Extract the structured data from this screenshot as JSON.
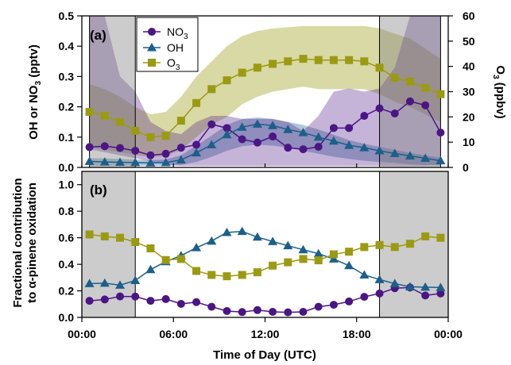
{
  "chart_data": [
    {
      "type": "line",
      "panel_label": "(a)",
      "xlabel": "",
      "ylabel": "OH or NO",
      "ylabel_sub": "3",
      "ylabel_tail": " (pptv)",
      "y2label": "O",
      "y2label_sub": "3",
      "y2label_tail": " (ppbv)",
      "xlim": [
        0,
        24
      ],
      "ylim": [
        0,
        0.5
      ],
      "y2lim": [
        0,
        60
      ],
      "yticks": [
        "0.0",
        "0.1",
        "0.2",
        "0.3",
        "0.4",
        "0.5"
      ],
      "y2ticks": [
        "0",
        "10",
        "20",
        "30",
        "40",
        "50",
        "60"
      ],
      "night_shading": [
        [
          0.5,
          3.5
        ],
        [
          19.5,
          23.5
        ]
      ],
      "x": [
        0.5,
        1.5,
        2.5,
        3.5,
        4.5,
        5.5,
        6.5,
        7.5,
        8.5,
        9.5,
        10.5,
        11.5,
        12.5,
        13.5,
        14.5,
        15.5,
        16.5,
        17.5,
        18.5,
        19.5,
        20.5,
        21.5,
        22.5,
        23.5
      ],
      "series": [
        {
          "name": "NO",
          "name_sub": "3",
          "axis": "left",
          "color": "#4b1585",
          "marker": "circle",
          "values": [
            0.067,
            0.07,
            0.064,
            0.055,
            0.04,
            0.045,
            0.065,
            0.075,
            0.142,
            0.13,
            0.093,
            0.082,
            0.102,
            0.065,
            0.06,
            0.068,
            0.13,
            0.13,
            0.17,
            0.195,
            0.178,
            0.218,
            0.205,
            0.115
          ],
          "band_low": [
            0.06,
            0.05,
            0.04,
            0.03,
            0.02,
            0.01,
            0.005,
            0.005,
            0.005,
            0.005,
            0.005,
            0.005,
            0.005,
            0.005,
            0.005,
            0.005,
            0.005,
            0.005,
            0.005,
            0.005,
            0.005,
            0.005,
            0.005,
            0.01
          ],
          "band_high": [
            0.5,
            0.5,
            0.3,
            0.25,
            0.15,
            0.12,
            0.11,
            0.15,
            0.17,
            0.17,
            0.16,
            0.16,
            0.16,
            0.15,
            0.12,
            0.17,
            0.25,
            0.26,
            0.25,
            0.26,
            0.33,
            0.5,
            0.5,
            0.5
          ]
        },
        {
          "name": "OH",
          "name_sub": "",
          "axis": "left",
          "color": "#1c5f8a",
          "marker": "triangle",
          "values": [
            0.02,
            0.018,
            0.017,
            0.016,
            0.015,
            0.016,
            0.025,
            0.048,
            0.075,
            0.108,
            0.133,
            0.143,
            0.138,
            0.125,
            0.115,
            0.1,
            0.087,
            0.073,
            0.065,
            0.055,
            0.046,
            0.038,
            0.03,
            0.022
          ],
          "band_low": [
            0.005,
            0.005,
            0.005,
            0.005,
            0.005,
            0.005,
            0.008,
            0.018,
            0.035,
            0.055,
            0.07,
            0.075,
            0.072,
            0.065,
            0.055,
            0.045,
            0.035,
            0.028,
            0.022,
            0.018,
            0.015,
            0.01,
            0.008,
            0.005
          ],
          "band_high": [
            0.03,
            0.03,
            0.028,
            0.026,
            0.024,
            0.026,
            0.04,
            0.072,
            0.105,
            0.14,
            0.16,
            0.165,
            0.16,
            0.15,
            0.14,
            0.125,
            0.108,
            0.09,
            0.078,
            0.068,
            0.058,
            0.048,
            0.04,
            0.032
          ]
        },
        {
          "name": "O",
          "name_sub": "3",
          "axis": "right",
          "color": "#9b9a13",
          "marker": "square",
          "values": [
            22,
            20.5,
            18,
            14.5,
            12,
            12.5,
            18.5,
            25.5,
            31,
            34.5,
            37.5,
            39.5,
            41,
            42,
            43,
            42.5,
            42.5,
            42.5,
            42,
            39.5,
            35.5,
            34,
            31.5,
            29
          ],
          "band_low": [
            8,
            7,
            6,
            5,
            4,
            4.5,
            7,
            12,
            17,
            20,
            25,
            28,
            30,
            31,
            32,
            31,
            31,
            31,
            31,
            29,
            26,
            24,
            21,
            18
          ],
          "band_high": [
            33,
            31,
            28,
            24,
            21,
            22,
            28,
            36,
            42,
            48,
            52,
            54,
            55,
            55.5,
            56,
            56,
            56,
            56,
            56,
            55,
            53,
            51,
            47,
            43
          ]
        }
      ]
    },
    {
      "type": "line",
      "panel_label": "(b)",
      "xlabel": "Time of Day (UTC)",
      "ylabel": "Fractional contribution",
      "ylabel2": "to α-pinene oxidation",
      "xlim": [
        0,
        24
      ],
      "ylim": [
        0,
        1.1
      ],
      "yticks": [
        "0.0",
        "0.2",
        "0.4",
        "0.6",
        "0.8",
        "1.0"
      ],
      "xtick_labels": [
        "00:00",
        "06:00",
        "12:00",
        "18:00",
        "00:00"
      ],
      "night_shading": [
        [
          0,
          3.5
        ],
        [
          19.5,
          24
        ]
      ],
      "x": [
        0.5,
        1.5,
        2.5,
        3.5,
        4.5,
        5.5,
        6.5,
        7.5,
        8.5,
        9.5,
        10.5,
        11.5,
        12.5,
        13.5,
        14.5,
        15.5,
        16.5,
        17.5,
        18.5,
        19.5,
        20.5,
        21.5,
        22.5,
        23.5
      ],
      "series": [
        {
          "name": "NO3",
          "color": "#4b1585",
          "marker": "circle",
          "values": [
            0.125,
            0.135,
            0.158,
            0.157,
            0.125,
            0.138,
            0.102,
            0.115,
            0.08,
            0.048,
            0.04,
            0.055,
            0.042,
            0.038,
            0.042,
            0.08,
            0.095,
            0.12,
            0.155,
            0.18,
            0.22,
            0.225,
            0.165,
            0.18
          ]
        },
        {
          "name": "OH",
          "color": "#1c5f8a",
          "marker": "triangle",
          "values": [
            0.255,
            0.258,
            0.243,
            0.278,
            0.36,
            0.42,
            0.465,
            0.525,
            0.575,
            0.64,
            0.648,
            0.605,
            0.572,
            0.54,
            0.51,
            0.48,
            0.44,
            0.39,
            0.32,
            0.285,
            0.255,
            0.23,
            0.228,
            0.225
          ]
        },
        {
          "name": "O3",
          "color": "#9b9a13",
          "marker": "square",
          "values": [
            0.625,
            0.61,
            0.6,
            0.568,
            0.52,
            0.432,
            0.44,
            0.35,
            0.32,
            0.31,
            0.32,
            0.34,
            0.39,
            0.415,
            0.44,
            0.43,
            0.475,
            0.495,
            0.53,
            0.545,
            0.53,
            0.555,
            0.61,
            0.6
          ]
        }
      ]
    }
  ]
}
